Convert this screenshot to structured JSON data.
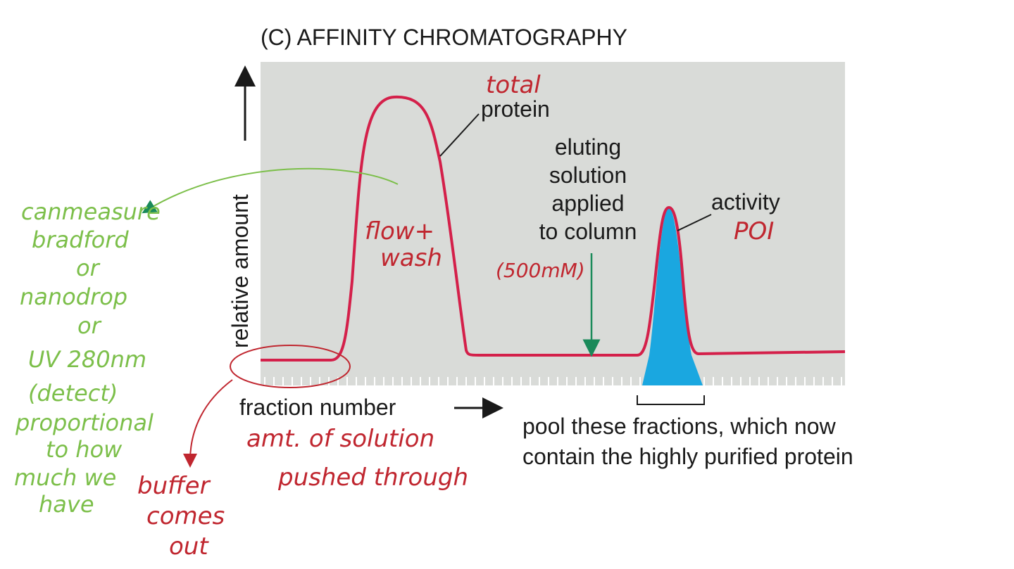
{
  "title": "(C)  AFFINITY CHROMATOGRAPHY",
  "axes": {
    "y_label": "relative amount",
    "x_label": "fraction number"
  },
  "labels": {
    "protein": "protein",
    "eluting": [
      "eluting",
      "solution",
      "applied",
      "to column"
    ],
    "activity": "activity",
    "pool": [
      "pool these fractions, which now",
      "contain the highly purified protein"
    ]
  },
  "handwritten": {
    "total": "total",
    "poi": "POI",
    "flow_wash": [
      "flow+",
      "wash"
    ],
    "concentration": "(500mM)",
    "measure": [
      "canmeasure",
      "bradford",
      "or",
      "nanodrop",
      "or",
      "UV 280nm",
      "(detect)",
      "proportional",
      "to how",
      "much we",
      "have"
    ],
    "fraction_note": [
      "amt. of solution",
      "pushed through"
    ],
    "buffer": [
      "buffer",
      "comes",
      "out"
    ]
  }
}
